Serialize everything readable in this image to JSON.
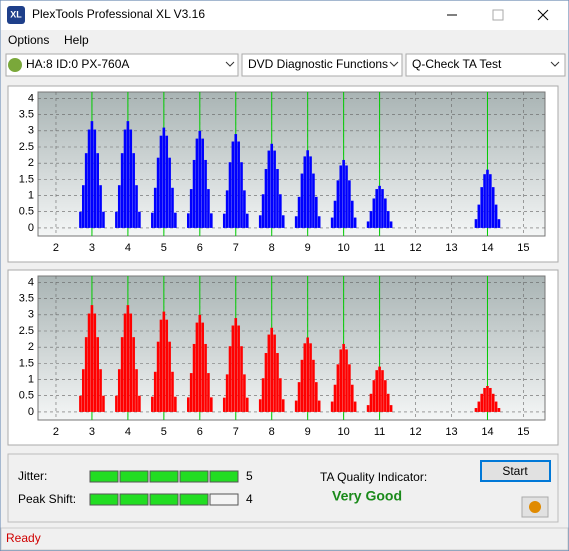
{
  "window": {
    "title": "PlexTools Professional XL V3.16"
  },
  "menu": [
    "Options",
    "Help"
  ],
  "toolbar": {
    "drive": "HA:8 ID:0  PX-760A",
    "function": "DVD Diagnostic Functions",
    "test": "Q-Check TA Test"
  },
  "chart_data": [
    {
      "type": "bar",
      "color": "#0000ff",
      "marker_color": "#00cc00",
      "marker_lines": [
        3,
        4,
        5,
        6,
        7,
        8,
        9,
        10,
        11,
        14
      ],
      "xlim": [
        1.5,
        15.6
      ],
      "ylim": [
        -0.25,
        4.2
      ],
      "xticks": [
        2,
        3,
        4,
        5,
        6,
        7,
        8,
        9,
        10,
        11,
        12,
        13,
        14,
        15
      ],
      "yticks": [
        0,
        0.5,
        1,
        1.5,
        2,
        2.5,
        3,
        3.5,
        4
      ],
      "grid": true,
      "x": [
        2.68,
        2.76,
        2.84,
        2.92,
        3,
        3.08,
        3.16,
        3.24,
        3.32,
        3.68,
        3.76,
        3.84,
        3.92,
        4,
        4.08,
        4.16,
        4.24,
        4.32,
        4.68,
        4.76,
        4.84,
        4.92,
        5,
        5.08,
        5.16,
        5.24,
        5.32,
        5.68,
        5.76,
        5.84,
        5.92,
        6,
        6.08,
        6.16,
        6.24,
        6.32,
        6.68,
        6.76,
        6.84,
        6.92,
        7,
        7.08,
        7.16,
        7.24,
        7.32,
        7.68,
        7.76,
        7.84,
        7.92,
        8,
        8.08,
        8.16,
        8.24,
        8.32,
        8.68,
        8.76,
        8.84,
        8.92,
        9,
        9.08,
        9.16,
        9.24,
        9.32,
        9.68,
        9.76,
        9.84,
        9.92,
        10,
        10.08,
        10.16,
        10.24,
        10.32,
        10.68,
        10.76,
        10.84,
        10.92,
        11,
        11.08,
        11.16,
        11.24,
        11.32,
        13.68,
        13.76,
        13.84,
        13.92,
        14,
        14.08,
        14.16,
        14.24,
        14.32
      ],
      "values": [
        0.5,
        1.32,
        2.31,
        3.04,
        3.3,
        3.04,
        2.31,
        1.32,
        0.5,
        0.5,
        1.32,
        2.31,
        3.04,
        3.3,
        3.04,
        2.31,
        1.32,
        0.5,
        0.47,
        1.24,
        2.17,
        2.85,
        3.1,
        2.85,
        2.17,
        1.24,
        0.47,
        0.45,
        1.2,
        2.1,
        2.76,
        3.0,
        2.76,
        2.1,
        1.2,
        0.45,
        0.44,
        1.16,
        2.03,
        2.67,
        2.9,
        2.67,
        2.03,
        1.16,
        0.44,
        0.39,
        1.04,
        1.82,
        2.39,
        2.6,
        2.39,
        1.82,
        1.04,
        0.39,
        0.36,
        0.96,
        1.68,
        2.21,
        2.4,
        2.21,
        1.68,
        0.96,
        0.36,
        0.32,
        0.84,
        1.47,
        1.93,
        2.1,
        1.93,
        1.47,
        0.84,
        0.32,
        0.2,
        0.52,
        0.91,
        1.2,
        1.3,
        1.2,
        0.91,
        0.52,
        0.2,
        0.27,
        0.72,
        1.26,
        1.66,
        1.8,
        1.66,
        1.26,
        0.72,
        0.27
      ]
    },
    {
      "type": "bar",
      "color": "#ff0000",
      "marker_color": "#00cc00",
      "marker_lines": [
        3,
        4,
        5,
        6,
        7,
        8,
        9,
        10,
        11,
        14
      ],
      "xlim": [
        1.5,
        15.6
      ],
      "ylim": [
        -0.25,
        4.2
      ],
      "xticks": [
        2,
        3,
        4,
        5,
        6,
        7,
        8,
        9,
        10,
        11,
        12,
        13,
        14,
        15
      ],
      "yticks": [
        0,
        0.5,
        1,
        1.5,
        2,
        2.5,
        3,
        3.5,
        4
      ],
      "grid": true,
      "x": [
        2.68,
        2.76,
        2.84,
        2.92,
        3,
        3.08,
        3.16,
        3.24,
        3.32,
        3.68,
        3.76,
        3.84,
        3.92,
        4,
        4.08,
        4.16,
        4.24,
        4.32,
        4.68,
        4.76,
        4.84,
        4.92,
        5,
        5.08,
        5.16,
        5.24,
        5.32,
        5.68,
        5.76,
        5.84,
        5.92,
        6,
        6.08,
        6.16,
        6.24,
        6.32,
        6.68,
        6.76,
        6.84,
        6.92,
        7,
        7.08,
        7.16,
        7.24,
        7.32,
        7.68,
        7.76,
        7.84,
        7.92,
        8,
        8.08,
        8.16,
        8.24,
        8.32,
        8.68,
        8.76,
        8.84,
        8.92,
        9,
        9.08,
        9.16,
        9.24,
        9.32,
        9.68,
        9.76,
        9.84,
        9.92,
        10,
        10.08,
        10.16,
        10.24,
        10.32,
        10.68,
        10.76,
        10.84,
        10.92,
        11,
        11.08,
        11.16,
        11.24,
        11.32,
        13.68,
        13.76,
        13.84,
        13.92,
        14,
        14.08,
        14.16,
        14.24,
        14.32
      ],
      "values": [
        0.5,
        1.32,
        2.31,
        3.04,
        3.3,
        3.04,
        2.31,
        1.32,
        0.5,
        0.5,
        1.32,
        2.31,
        3.04,
        3.3,
        3.04,
        2.31,
        1.32,
        0.5,
        0.47,
        1.24,
        2.17,
        2.85,
        3.1,
        2.85,
        2.17,
        1.24,
        0.47,
        0.45,
        1.2,
        2.1,
        2.76,
        3.0,
        2.76,
        2.1,
        1.2,
        0.45,
        0.44,
        1.16,
        2.03,
        2.67,
        2.9,
        2.67,
        2.03,
        1.16,
        0.44,
        0.39,
        1.04,
        1.82,
        2.39,
        2.6,
        2.39,
        1.82,
        1.04,
        0.39,
        0.35,
        0.92,
        1.61,
        2.12,
        2.3,
        2.12,
        1.61,
        0.92,
        0.35,
        0.32,
        0.84,
        1.47,
        1.93,
        2.1,
        1.93,
        1.47,
        0.84,
        0.32,
        0.21,
        0.56,
        0.98,
        1.29,
        1.4,
        1.29,
        0.98,
        0.56,
        0.21,
        0.12,
        0.32,
        0.56,
        0.74,
        0.8,
        0.74,
        0.56,
        0.32,
        0.12
      ]
    }
  ],
  "results": {
    "jitter_label": "Jitter:",
    "jitter": 5,
    "peak_shift_label": "Peak Shift:",
    "peak_shift": 4,
    "ta_label": "TA Quality Indicator:",
    "ta_value": "Very Good",
    "start": "Start"
  },
  "status": "Ready"
}
